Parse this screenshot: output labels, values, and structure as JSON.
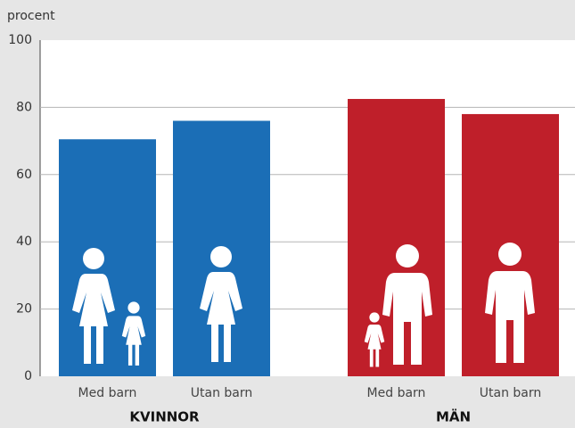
{
  "chart_data": {
    "type": "bar",
    "y_label": "procent",
    "groups": [
      {
        "name": "KVINNOR",
        "color": "#1b6eb6",
        "categories": [
          "Med barn",
          "Utan barn"
        ],
        "values": [
          70.5,
          76
        ]
      },
      {
        "name": "MÄN",
        "color": "#bf1f2a",
        "categories": [
          "Med barn",
          "Utan barn"
        ],
        "values": [
          82.5,
          78
        ]
      }
    ],
    "ylim": [
      0,
      100
    ],
    "yticks": [
      0,
      20,
      40,
      60,
      80,
      100
    ],
    "grid": true
  }
}
